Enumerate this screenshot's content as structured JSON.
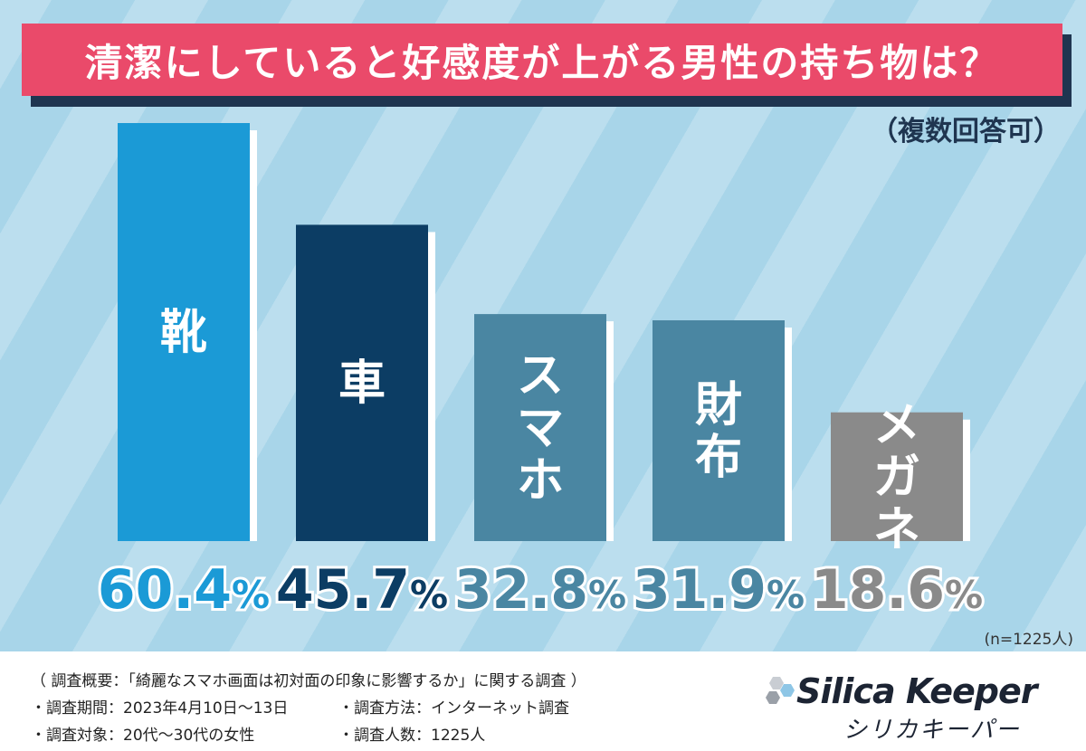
{
  "title": "清潔にしていると好感度が上がる男性の持ち物は？",
  "subtitle": "（複数回答可）",
  "n_note": "(n=1225人)",
  "colors": {
    "title_bg": "#ea4a6a",
    "background": "#a8d5e9",
    "text_dark": "#1f3550"
  },
  "chart_data": {
    "type": "bar",
    "title": "清潔にしていると好感度が上がる男性の持ち物は？",
    "categories": [
      "靴",
      "車",
      "スマホ",
      "財布",
      "メガネ"
    ],
    "values": [
      60.4,
      45.7,
      32.8,
      31.9,
      18.6
    ],
    "value_labels": [
      {
        "num": "60.4",
        "pct": "%"
      },
      {
        "num": "45.7",
        "pct": "%"
      },
      {
        "num": "32.8",
        "pct": "%"
      },
      {
        "num": "31.9",
        "pct": "%"
      },
      {
        "num": "18.6",
        "pct": "%"
      }
    ],
    "bar_colors": [
      "#1b9ad6",
      "#0c3d64",
      "#4a86a2",
      "#4a86a2",
      "#8a8a8a"
    ],
    "value_colors": [
      "#1b9ad6",
      "#0c3d64",
      "#4a86a2",
      "#4a86a2",
      "#8a8a8a"
    ],
    "ylim": [
      0,
      60.4
    ],
    "grid": false,
    "legend": "none",
    "unit": "%"
  },
  "footer": {
    "survey_summary": "（ 調査概要：「綺麗なスマホ画面は初対面の印象に影響するか」に関する調査 ）",
    "period": "・調査期間：2023年4月10日〜13日",
    "method": "・調査方法：インターネット調査",
    "target": "・調査対象：20代〜30代の女性",
    "respondents": "・調査人数：1225人"
  },
  "logo": {
    "name": "Silica Keeper",
    "katakana": "シリカキーパー"
  }
}
